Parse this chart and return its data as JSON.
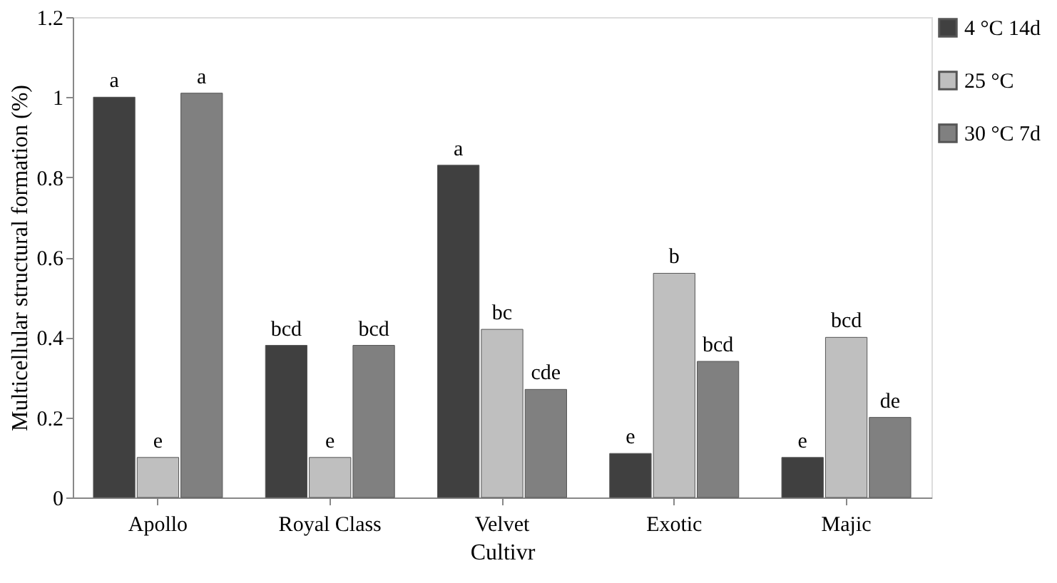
{
  "chart_data": {
    "type": "bar",
    "xlabel": "Cultivr",
    "ylabel": "Multicellular structural formation (%)",
    "categories": [
      "Apollo",
      "Royal Class",
      "Velvet",
      "Exotic",
      "Majic"
    ],
    "series": [
      {
        "name": "4 °C 14d",
        "color": "#404040",
        "values": [
          1.0,
          0.38,
          0.83,
          0.11,
          0.1
        ],
        "value_labels": [
          "a",
          "bcd",
          "a",
          "e",
          "e"
        ]
      },
      {
        "name": "25 °C",
        "color": "#bfbfbf",
        "values": [
          0.1,
          0.1,
          0.42,
          0.56,
          0.4
        ],
        "value_labels": [
          "e",
          "e",
          "bc",
          "b",
          "bcd"
        ]
      },
      {
        "name": "30 °C 7d",
        "color": "#808080",
        "values": [
          1.01,
          0.38,
          0.27,
          0.34,
          0.2
        ],
        "value_labels": [
          "a",
          "bcd",
          "cde",
          "bcd",
          "de"
        ]
      }
    ],
    "ylim": [
      0,
      1.2
    ],
    "yticks": [
      0,
      0.2,
      0.4,
      0.6,
      0.8,
      1,
      1.2
    ],
    "legend": "top right"
  }
}
